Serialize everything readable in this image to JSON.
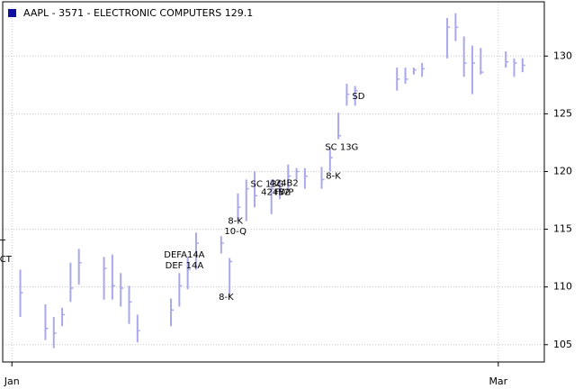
{
  "chart_data": {
    "type": "ohlc",
    "series": [
      {
        "name": "AAPL - 3571 - ELECTRONIC COMPUTERS 129.1",
        "color": "#a8a8ec",
        "legend_color": "#1010a0",
        "x": [
          1,
          4,
          5,
          6,
          7,
          8,
          11,
          12,
          13,
          14,
          15,
          19,
          20,
          21,
          22,
          25,
          26,
          27,
          28,
          29,
          31,
          32,
          33,
          34,
          35,
          37,
          38,
          39,
          40,
          41,
          46,
          47,
          48,
          49,
          52,
          53,
          54,
          55,
          56,
          59,
          60,
          61
        ],
        "high": [
          111.5,
          108.5,
          107.4,
          108.2,
          112.1,
          113.3,
          112.6,
          112.8,
          111.2,
          110.1,
          107.6,
          109.0,
          111.2,
          112.6,
          114.7,
          114.4,
          112.5,
          118.1,
          119.3,
          120.0,
          119.3,
          119.3,
          120.6,
          120.3,
          120.3,
          120.4,
          122.1,
          125.1,
          127.6,
          127.4,
          129.0,
          129.0,
          129.0,
          129.4,
          133.3,
          133.7,
          131.7,
          130.9,
          130.7,
          130.4,
          129.8,
          129.8
        ],
        "low": [
          107.4,
          105.4,
          104.7,
          106.6,
          108.7,
          110.2,
          108.9,
          108.9,
          108.3,
          106.8,
          105.2,
          106.6,
          108.3,
          109.8,
          111.5,
          112.9,
          109.1,
          115.7,
          115.7,
          116.9,
          116.3,
          117.6,
          118.5,
          119.3,
          118.5,
          118.5,
          120.0,
          122.8,
          125.7,
          125.7,
          127.0,
          127.6,
          128.4,
          128.2,
          129.8,
          131.3,
          128.2,
          126.7,
          128.4,
          129.0,
          128.2,
          128.6
        ],
        "close": [
          109.5,
          106.4,
          106.0,
          107.6,
          109.9,
          112.1,
          111.6,
          110.1,
          109.9,
          108.7,
          106.2,
          108.0,
          110.1,
          111.5,
          113.8,
          113.8,
          112.2,
          116.9,
          118.5,
          117.9,
          118.5,
          118.5,
          119.6,
          120.0,
          119.6,
          119.3,
          121.2,
          123.1,
          126.7,
          127.0,
          128.0,
          128.0,
          128.8,
          128.9,
          132.5,
          132.5,
          129.4,
          129.4,
          128.6,
          129.5,
          129.4,
          129.2
        ]
      }
    ],
    "annotations": [
      {
        "text": "T",
        "x": -1.1,
        "y": 113.8
      },
      {
        "text": "CT",
        "x": -0.75,
        "y": 112.4
      },
      {
        "text": "DEFA14A",
        "x": 20.6,
        "y": 112.8
      },
      {
        "text": "DEF 14A",
        "x": 20.6,
        "y": 111.85
      },
      {
        "text": "8-K",
        "x": 25.6,
        "y": 109.1
      },
      {
        "text": "8-K",
        "x": 26.7,
        "y": 115.7
      },
      {
        "text": "10-Q",
        "x": 26.7,
        "y": 114.8
      },
      {
        "text": "SC 13G",
        "x": 30.5,
        "y": 118.9
      },
      {
        "text": "424B2",
        "x": 32.5,
        "y": 119.0
      },
      {
        "text": "424B2",
        "x": 31.5,
        "y": 118.2
      },
      {
        "text": "FWP",
        "x": 32.5,
        "y": 118.2
      },
      {
        "text": "8-K",
        "x": 38.4,
        "y": 119.6
      },
      {
        "text": "SC 13G",
        "x": 39.4,
        "y": 122.1
      },
      {
        "text": "SD",
        "x": 41.4,
        "y": 126.5
      }
    ],
    "xlim": [
      -1.1,
      63.6
    ],
    "xticks": [
      {
        "value": 0,
        "label": "Jan"
      },
      {
        "value": 58.1,
        "label": "Mar"
      }
    ],
    "ylim": [
      103.5,
      134.7
    ],
    "yticks": [
      105,
      110,
      115,
      120,
      125,
      130
    ],
    "grid": true
  }
}
